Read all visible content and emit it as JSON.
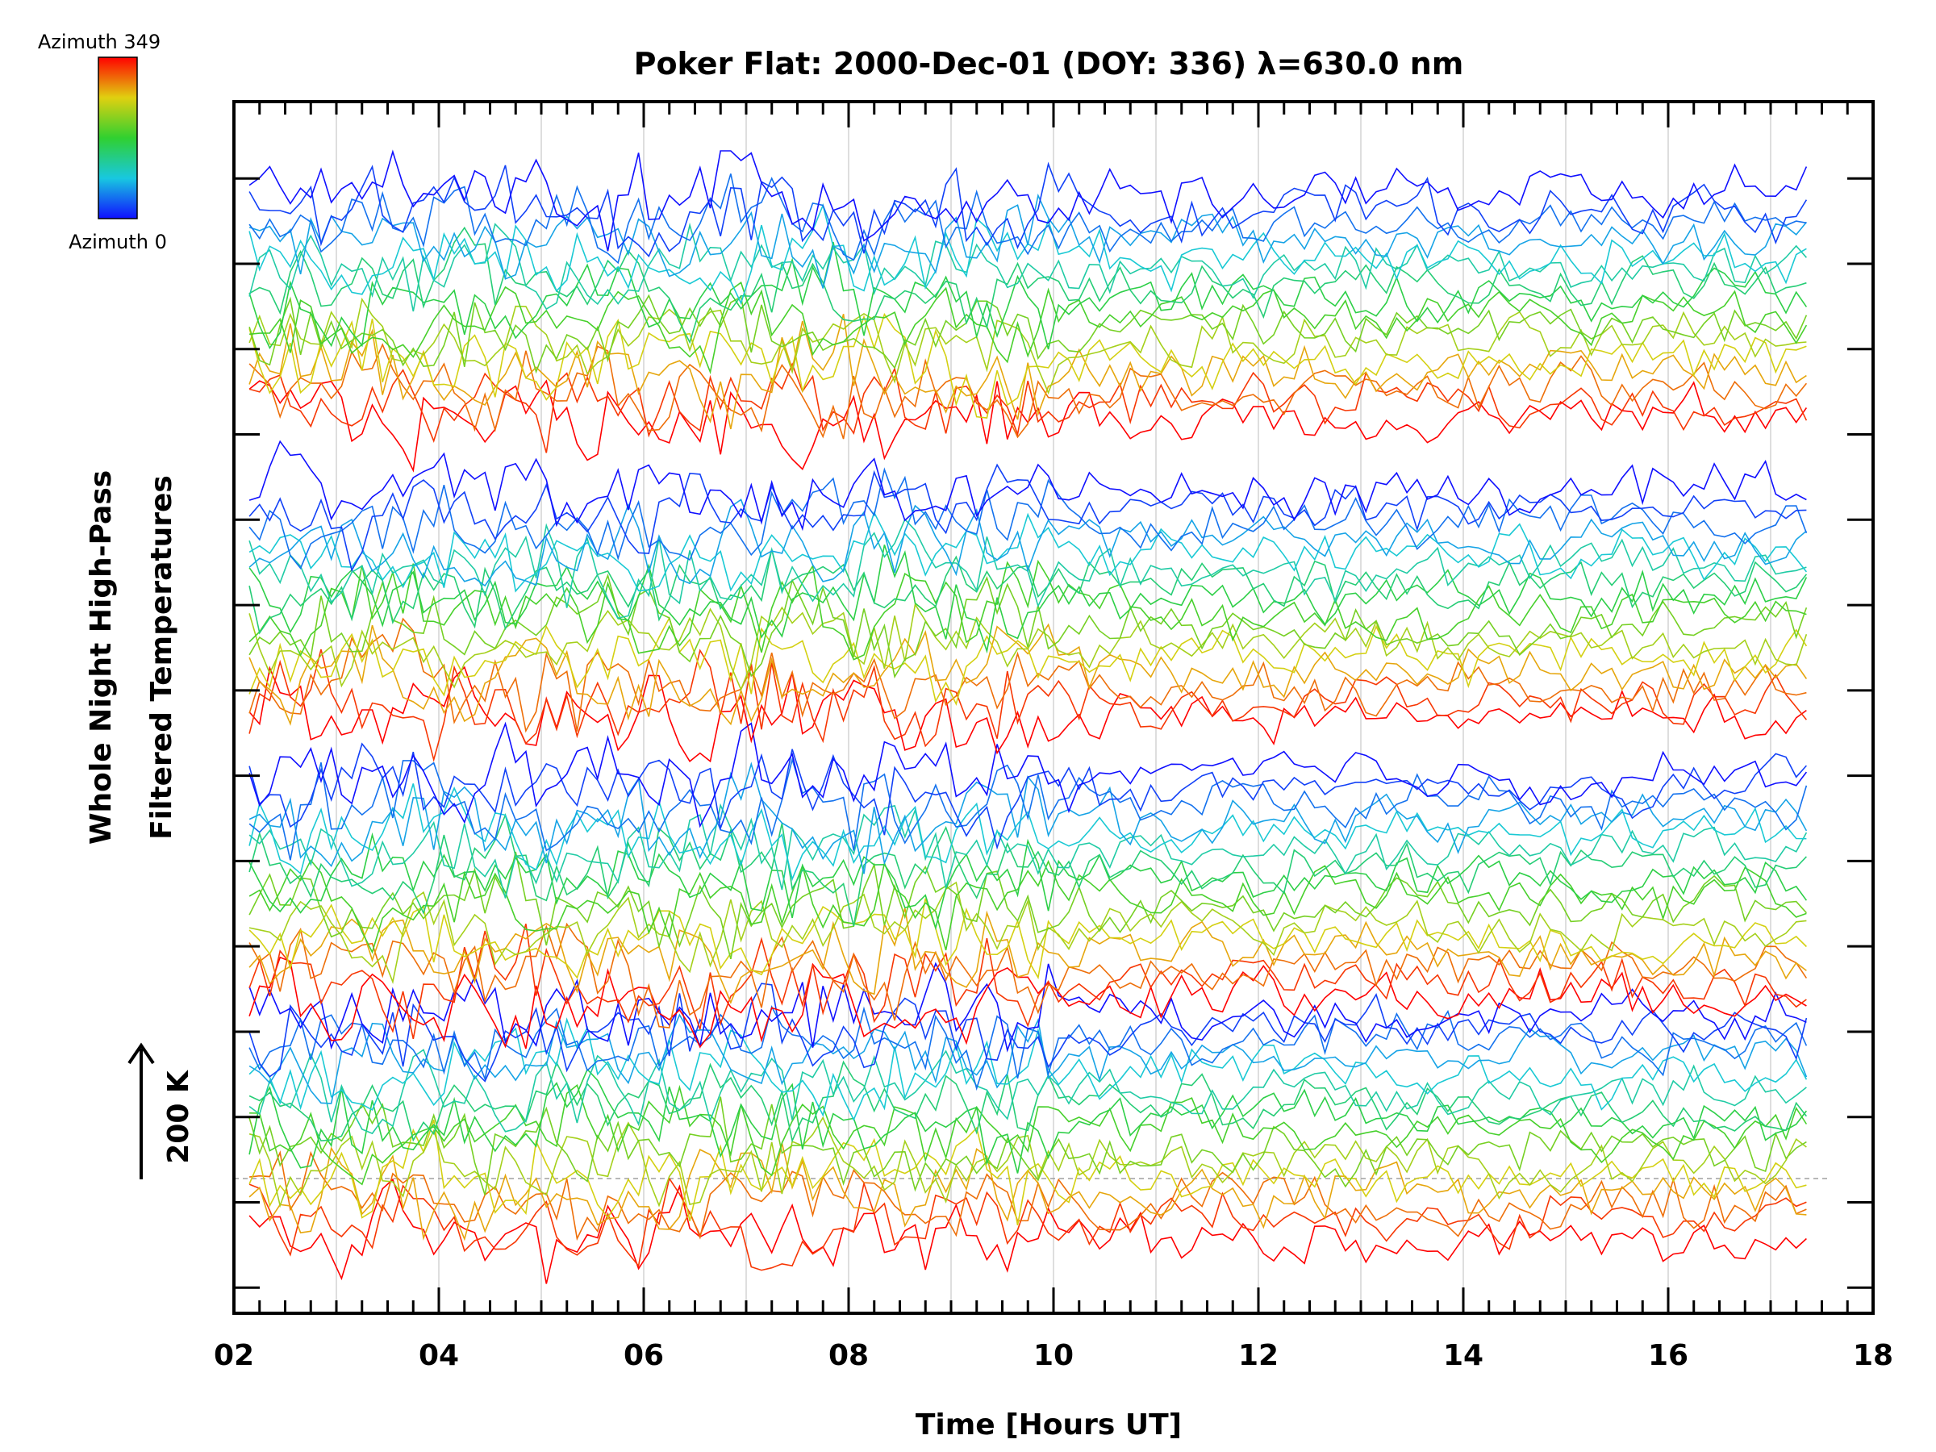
{
  "chart_data": {
    "type": "line",
    "title": "Poker Flat: 2000-Dec-01 (DOY: 336) λ=630.0 nm",
    "xlabel": "Time [Hours UT]",
    "ylabel_line1": "Whole Night High-Pass",
    "ylabel_line2": "Filtered Temperatures",
    "scale_label": "200 K",
    "xlim": [
      2,
      18
    ],
    "x_ticks": [
      "02",
      "04",
      "06",
      "08",
      "10",
      "12",
      "14",
      "16",
      "18"
    ],
    "x_tick_values": [
      2,
      4,
      6,
      8,
      10,
      12,
      14,
      16,
      18
    ],
    "ylim": [
      -1.3,
      12.9
    ],
    "data_range_x": [
      2.15,
      17.35
    ],
    "grid": true,
    "legend": {
      "type": "colorbar",
      "placement": "top-left",
      "top_label": "Azimuth 349",
      "bottom_label": "Azimuth 0"
    },
    "series_description": "Stacked traces, one per azimuth, colored by azimuth (0 blue to 349 red)",
    "colors": {
      "azimuth_0": "#1010ff",
      "azimuth_mid": "#30d030",
      "azimuth_349": "#ff0000",
      "grid": "#c8c8c8",
      "baseline": "#a0a0a0"
    }
  }
}
